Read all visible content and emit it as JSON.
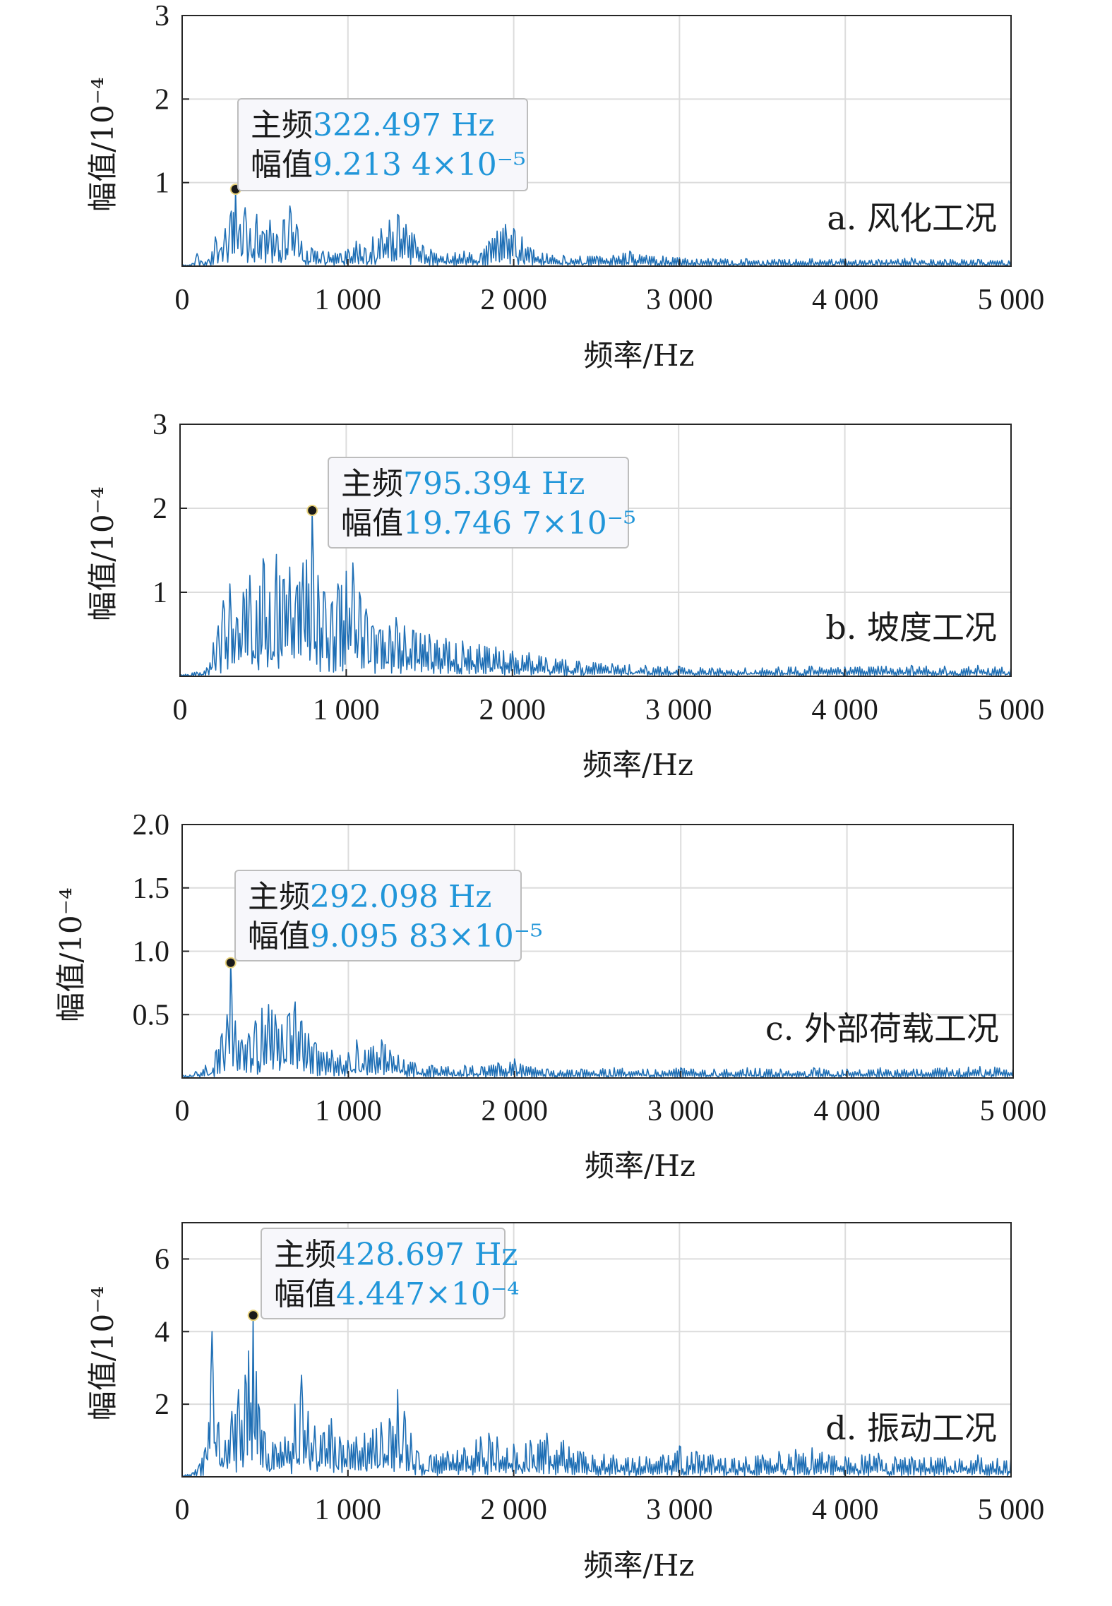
{
  "chart_data": [
    {
      "type": "line",
      "caption": "a. 风化工况",
      "xlabel": "频率/Hz",
      "ylabel": "幅值/10⁻⁴",
      "xlim": [
        0,
        5000
      ],
      "ylim": [
        0,
        3
      ],
      "x_ticks": [
        0,
        1000,
        2000,
        3000,
        4000,
        5000
      ],
      "x_tick_labels": [
        "0",
        "1 000",
        "2 000",
        "3 000",
        "4 000",
        "5 000"
      ],
      "y_ticks": [
        1,
        2,
        3
      ],
      "y_tick_labels": [
        "1",
        "2",
        "3"
      ],
      "grid": true,
      "line_color": "#1f6fb5",
      "peak": {
        "x": 322.497,
        "y": 0.9213
      },
      "tooltip": {
        "label1": "主频",
        "value1": "322.497 Hz",
        "label2": "幅值",
        "value2": "9.213 4×10⁻⁵"
      },
      "series": [
        {
          "values": [
            [
              0,
              0.02
            ],
            [
              60,
              0.03
            ],
            [
              90,
              0.15
            ],
            [
              120,
              0.05
            ],
            [
              160,
              0.08
            ],
            [
              200,
              0.35
            ],
            [
              230,
              0.2
            ],
            [
              260,
              0.45
            ],
            [
              290,
              0.6
            ],
            [
              322,
              0.92
            ],
            [
              350,
              0.5
            ],
            [
              380,
              0.7
            ],
            [
              410,
              0.45
            ],
            [
              450,
              0.62
            ],
            [
              490,
              0.4
            ],
            [
              530,
              0.55
            ],
            [
              570,
              0.38
            ],
            [
              610,
              0.55
            ],
            [
              650,
              0.72
            ],
            [
              690,
              0.5
            ],
            [
              720,
              0.3
            ],
            [
              780,
              0.22
            ],
            [
              850,
              0.18
            ],
            [
              950,
              0.15
            ],
            [
              1000,
              0.2
            ],
            [
              1050,
              0.3
            ],
            [
              1100,
              0.22
            ],
            [
              1150,
              0.35
            ],
            [
              1200,
              0.45
            ],
            [
              1250,
              0.55
            ],
            [
              1300,
              0.62
            ],
            [
              1350,
              0.5
            ],
            [
              1400,
              0.38
            ],
            [
              1450,
              0.25
            ],
            [
              1500,
              0.2
            ],
            [
              1600,
              0.15
            ],
            [
              1700,
              0.18
            ],
            [
              1800,
              0.15
            ],
            [
              1850,
              0.3
            ],
            [
              1900,
              0.42
            ],
            [
              1950,
              0.5
            ],
            [
              2000,
              0.45
            ],
            [
              2050,
              0.35
            ],
            [
              2100,
              0.22
            ],
            [
              2200,
              0.15
            ],
            [
              2300,
              0.13
            ],
            [
              2400,
              0.12
            ],
            [
              2500,
              0.12
            ],
            [
              2600,
              0.13
            ],
            [
              2700,
              0.18
            ],
            [
              2800,
              0.13
            ],
            [
              2900,
              0.12
            ],
            [
              3000,
              0.1
            ],
            [
              3200,
              0.09
            ],
            [
              3400,
              0.09
            ],
            [
              3600,
              0.08
            ],
            [
              3800,
              0.09
            ],
            [
              4000,
              0.09
            ],
            [
              4200,
              0.08
            ],
            [
              4400,
              0.1
            ],
            [
              4600,
              0.08
            ],
            [
              4800,
              0.08
            ],
            [
              5000,
              0.07
            ]
          ]
        }
      ]
    },
    {
      "type": "line",
      "caption": "b. 坡度工况",
      "xlabel": "频率/Hz",
      "ylabel": "幅值/10⁻⁴",
      "xlim": [
        0,
        5000
      ],
      "ylim": [
        0,
        3
      ],
      "x_ticks": [
        0,
        1000,
        2000,
        3000,
        4000,
        5000
      ],
      "x_tick_labels": [
        "0",
        "1 000",
        "2 000",
        "3 000",
        "4 000",
        "5 000"
      ],
      "y_ticks": [
        1,
        2,
        3
      ],
      "y_tick_labels": [
        "1",
        "2",
        "3"
      ],
      "grid": true,
      "line_color": "#1f6fb5",
      "peak": {
        "x": 795.394,
        "y": 1.97467
      },
      "tooltip": {
        "label1": "主频",
        "value1": "795.394 Hz",
        "label2": "幅值",
        "value2": "19.746 7×10⁻⁵"
      },
      "series": [
        {
          "values": [
            [
              0,
              0.02
            ],
            [
              100,
              0.05
            ],
            [
              160,
              0.1
            ],
            [
              200,
              0.4
            ],
            [
              230,
              0.6
            ],
            [
              260,
              0.9
            ],
            [
              300,
              1.1
            ],
            [
              340,
              0.7
            ],
            [
              380,
              1.0
            ],
            [
              420,
              1.2
            ],
            [
              460,
              0.9
            ],
            [
              500,
              1.4
            ],
            [
              540,
              1.0
            ],
            [
              580,
              1.45
            ],
            [
              620,
              1.15
            ],
            [
              660,
              1.3
            ],
            [
              700,
              1.05
            ],
            [
              740,
              1.35
            ],
            [
              795,
              1.97
            ],
            [
              830,
              1.2
            ],
            [
              870,
              1.0
            ],
            [
              910,
              0.85
            ],
            [
              950,
              1.1
            ],
            [
              1000,
              1.25
            ],
            [
              1040,
              1.35
            ],
            [
              1080,
              1.0
            ],
            [
              1120,
              0.8
            ],
            [
              1160,
              0.6
            ],
            [
              1200,
              0.55
            ],
            [
              1260,
              0.6
            ],
            [
              1300,
              0.7
            ],
            [
              1350,
              0.6
            ],
            [
              1400,
              0.55
            ],
            [
              1500,
              0.5
            ],
            [
              1600,
              0.45
            ],
            [
              1700,
              0.42
            ],
            [
              1800,
              0.38
            ],
            [
              1900,
              0.35
            ],
            [
              2000,
              0.3
            ],
            [
              2100,
              0.28
            ],
            [
              2200,
              0.22
            ],
            [
              2300,
              0.2
            ],
            [
              2400,
              0.18
            ],
            [
              2500,
              0.16
            ],
            [
              2600,
              0.15
            ],
            [
              2800,
              0.13
            ],
            [
              3000,
              0.12
            ],
            [
              3200,
              0.1
            ],
            [
              3400,
              0.1
            ],
            [
              3600,
              0.11
            ],
            [
              3800,
              0.12
            ],
            [
              4000,
              0.11
            ],
            [
              4200,
              0.12
            ],
            [
              4400,
              0.13
            ],
            [
              4600,
              0.12
            ],
            [
              4800,
              0.13
            ],
            [
              5000,
              0.11
            ]
          ]
        }
      ]
    },
    {
      "type": "line",
      "caption": "c. 外部荷载工况",
      "xlabel": "频率/Hz",
      "ylabel": "幅值/10⁻⁴",
      "xlim": [
        0,
        5000
      ],
      "ylim": [
        0,
        2.0
      ],
      "x_ticks": [
        0,
        1000,
        2000,
        3000,
        4000,
        5000
      ],
      "x_tick_labels": [
        "0",
        "1 000",
        "2 000",
        "3 000",
        "4 000",
        "5 000"
      ],
      "y_ticks": [
        0.5,
        1.0,
        1.5,
        2.0
      ],
      "y_tick_labels": [
        "0.5",
        "1.0",
        "1.5",
        "2.0"
      ],
      "grid": true,
      "line_color": "#1f6fb5",
      "peak": {
        "x": 292.098,
        "y": 0.909583
      },
      "tooltip": {
        "label1": "主频",
        "value1": "292.098 Hz",
        "label2": "幅值",
        "value2": "9.095 83×10⁻⁵"
      },
      "series": [
        {
          "values": [
            [
              0,
              0.02
            ],
            [
              80,
              0.05
            ],
            [
              140,
              0.1
            ],
            [
              200,
              0.2
            ],
            [
              240,
              0.35
            ],
            [
              270,
              0.5
            ],
            [
              292,
              0.91
            ],
            [
              320,
              0.45
            ],
            [
              360,
              0.3
            ],
            [
              400,
              0.35
            ],
            [
              440,
              0.45
            ],
            [
              480,
              0.55
            ],
            [
              520,
              0.58
            ],
            [
              560,
              0.5
            ],
            [
              600,
              0.42
            ],
            [
              640,
              0.5
            ],
            [
              680,
              0.6
            ],
            [
              720,
              0.45
            ],
            [
              760,
              0.35
            ],
            [
              800,
              0.28
            ],
            [
              850,
              0.2
            ],
            [
              900,
              0.22
            ],
            [
              950,
              0.18
            ],
            [
              1000,
              0.2
            ],
            [
              1050,
              0.3
            ],
            [
              1100,
              0.22
            ],
            [
              1150,
              0.25
            ],
            [
              1200,
              0.3
            ],
            [
              1250,
              0.22
            ],
            [
              1300,
              0.18
            ],
            [
              1400,
              0.12
            ],
            [
              1500,
              0.1
            ],
            [
              1600,
              0.09
            ],
            [
              1700,
              0.1
            ],
            [
              1800,
              0.09
            ],
            [
              1900,
              0.12
            ],
            [
              2000,
              0.15
            ],
            [
              2050,
              0.1
            ],
            [
              2200,
              0.07
            ],
            [
              2400,
              0.07
            ],
            [
              2600,
              0.08
            ],
            [
              2800,
              0.07
            ],
            [
              3000,
              0.08
            ],
            [
              3200,
              0.07
            ],
            [
              3400,
              0.08
            ],
            [
              3600,
              0.07
            ],
            [
              3800,
              0.08
            ],
            [
              4000,
              0.07
            ],
            [
              4200,
              0.08
            ],
            [
              4400,
              0.07
            ],
            [
              4600,
              0.08
            ],
            [
              4800,
              0.09
            ],
            [
              5000,
              0.08
            ]
          ]
        }
      ]
    },
    {
      "type": "line",
      "caption": "d. 振动工况",
      "xlabel": "频率/Hz",
      "ylabel": "幅值/10⁻⁴",
      "xlim": [
        0,
        5000
      ],
      "ylim": [
        0,
        7
      ],
      "x_ticks": [
        0,
        1000,
        2000,
        3000,
        4000,
        5000
      ],
      "x_tick_labels": [
        "0",
        "1 000",
        "2 000",
        "3 000",
        "4 000",
        "5 000"
      ],
      "y_ticks": [
        2,
        4,
        6
      ],
      "y_tick_labels": [
        "2",
        "4",
        "6"
      ],
      "grid": true,
      "line_color": "#1f6fb5",
      "peak": {
        "x": 428.697,
        "y": 4.447
      },
      "tooltip": {
        "label1": "主频",
        "value1": "428.697 Hz",
        "label2": "幅值",
        "value2": "4.447×10⁻⁴"
      },
      "series": [
        {
          "values": [
            [
              0,
              0.05
            ],
            [
              60,
              0.1
            ],
            [
              100,
              0.3
            ],
            [
              140,
              0.8
            ],
            [
              180,
              4.0
            ],
            [
              220,
              1.5
            ],
            [
              260,
              1.0
            ],
            [
              300,
              1.8
            ],
            [
              340,
              2.4
            ],
            [
              380,
              2.8
            ],
            [
              428,
              4.45
            ],
            [
              460,
              2.0
            ],
            [
              500,
              1.2
            ],
            [
              560,
              0.9
            ],
            [
              620,
              1.1
            ],
            [
              680,
              2.0
            ],
            [
              720,
              2.8
            ],
            [
              760,
              1.8
            ],
            [
              800,
              1.4
            ],
            [
              850,
              1.2
            ],
            [
              900,
              1.6
            ],
            [
              950,
              1.1
            ],
            [
              1000,
              1.0
            ],
            [
              1050,
              1.1
            ],
            [
              1100,
              1.2
            ],
            [
              1150,
              1.3
            ],
            [
              1200,
              1.5
            ],
            [
              1250,
              1.6
            ],
            [
              1300,
              2.4
            ],
            [
              1340,
              1.8
            ],
            [
              1380,
              1.2
            ],
            [
              1420,
              0.7
            ],
            [
              1500,
              0.6
            ],
            [
              1600,
              0.7
            ],
            [
              1700,
              0.8
            ],
            [
              1800,
              1.1
            ],
            [
              1850,
              1.2
            ],
            [
              1900,
              1.1
            ],
            [
              2000,
              0.9
            ],
            [
              2100,
              1.0
            ],
            [
              2200,
              1.2
            ],
            [
              2300,
              1.0
            ],
            [
              2400,
              0.7
            ],
            [
              2600,
              0.6
            ],
            [
              2800,
              0.55
            ],
            [
              2900,
              0.6
            ],
            [
              3000,
              0.85
            ],
            [
              3100,
              0.7
            ],
            [
              3200,
              0.6
            ],
            [
              3400,
              0.55
            ],
            [
              3500,
              0.6
            ],
            [
              3600,
              0.7
            ],
            [
              3700,
              0.75
            ],
            [
              3800,
              0.8
            ],
            [
              3900,
              0.6
            ],
            [
              4000,
              0.55
            ],
            [
              4100,
              0.6
            ],
            [
              4200,
              0.65
            ],
            [
              4300,
              0.55
            ],
            [
              4400,
              0.55
            ],
            [
              4600,
              0.55
            ],
            [
              4800,
              0.6
            ],
            [
              5000,
              0.55
            ]
          ]
        }
      ]
    }
  ]
}
